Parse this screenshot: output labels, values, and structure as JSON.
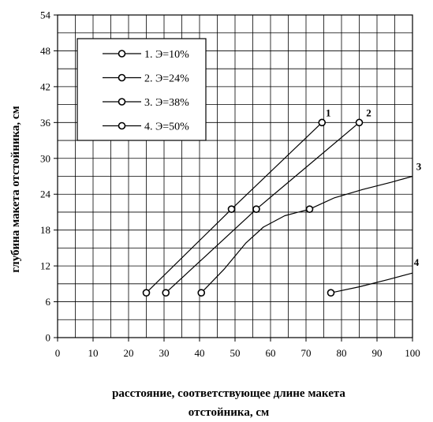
{
  "chart_data": {
    "type": "line",
    "title": "",
    "xlabel_lines": [
      "расстояние, соответствующее длине макета",
      "отстойника, см"
    ],
    "ylabel": "глубина макета отстойника, см",
    "xlim": [
      0,
      100
    ],
    "ylim": [
      0,
      54
    ],
    "xticks": [
      0,
      10,
      20,
      30,
      40,
      50,
      60,
      70,
      80,
      90,
      100
    ],
    "yticks": [
      0,
      6,
      12,
      18,
      24,
      30,
      36,
      42,
      48,
      54
    ],
    "minor_grid_x_step": 5,
    "minor_grid_y_step": 3,
    "grid": true,
    "legend_placement": "top-left",
    "series": [
      {
        "name": "1. Э=10%",
        "end_label": "1",
        "markers": [
          [
            25,
            7.5
          ],
          [
            49,
            21.5
          ],
          [
            74.5,
            36
          ]
        ],
        "curve": [
          [
            25,
            7.5
          ],
          [
            49,
            21.5
          ],
          [
            74.5,
            36
          ]
        ]
      },
      {
        "name": "2. Э=24%",
        "end_label": "2",
        "markers": [
          [
            30.5,
            7.5
          ],
          [
            56,
            21.5
          ],
          [
            85,
            36
          ]
        ],
        "curve": [
          [
            30.5,
            7.5
          ],
          [
            56,
            21.5
          ],
          [
            85,
            36
          ]
        ]
      },
      {
        "name": "3. Э=38%",
        "end_label": "3",
        "markers": [
          [
            40.5,
            7.5
          ],
          [
            71,
            21.5
          ]
        ],
        "curve": [
          [
            40.5,
            7.5
          ],
          [
            47,
            11.5
          ],
          [
            53,
            15.8
          ],
          [
            58,
            18.5
          ],
          [
            64,
            20.4
          ],
          [
            71,
            21.5
          ],
          [
            78,
            23.4
          ],
          [
            86,
            24.8
          ],
          [
            94,
            26
          ],
          [
            100,
            27
          ]
        ]
      },
      {
        "name": "4. Э=50%",
        "end_label": "4",
        "markers": [
          [
            77,
            7.5
          ]
        ],
        "curve": [
          [
            77,
            7.5
          ],
          [
            85,
            8.5
          ],
          [
            93,
            9.7
          ],
          [
            100,
            10.8
          ]
        ]
      }
    ]
  }
}
